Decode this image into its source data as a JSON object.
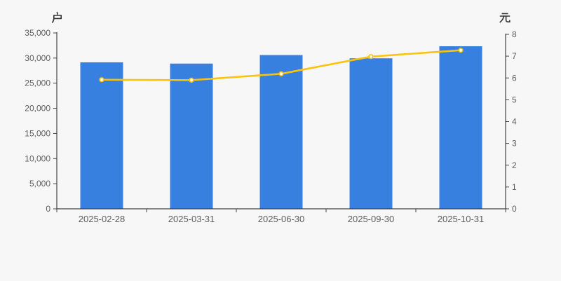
{
  "chart_data": {
    "type": "bar+line",
    "categories": [
      "2025-02-28",
      "2025-03-31",
      "2025-06-30",
      "2025-09-30",
      "2025-10-31"
    ],
    "series": [
      {
        "name": "户",
        "type": "bar",
        "axis": "left",
        "unit": "户",
        "values": [
          29150,
          28900,
          30600,
          29950,
          32350
        ],
        "color": "#3880df"
      },
      {
        "name": "元",
        "type": "line",
        "axis": "right",
        "unit": "元",
        "values": [
          5.92,
          5.9,
          6.19,
          6.98,
          7.27
        ],
        "color": "#fcc30b",
        "marker": "empty-circle",
        "marker_fill": "#ffffff"
      }
    ],
    "left_axis": {
      "label": "户",
      "min": 0,
      "max": 35000,
      "step": 5000,
      "tick_labels": [
        "0",
        "5,000",
        "10,000",
        "15,000",
        "20,000",
        "25,000",
        "30,000",
        "35,000"
      ]
    },
    "right_axis": {
      "label": "元",
      "min": 0,
      "max": 8,
      "step": 1,
      "tick_labels": [
        "0",
        "1",
        "2",
        "3",
        "4",
        "5",
        "6",
        "7",
        "8"
      ]
    },
    "grid": false,
    "legend": false,
    "title": ""
  },
  "colors": {
    "background": "#f7f7f7",
    "bar": "#3880df",
    "line": "#fcc30b",
    "marker_fill": "#ffffff",
    "axis_line": "#444444",
    "tick_text": "#5c5c5c",
    "unit_text": "#333333"
  }
}
